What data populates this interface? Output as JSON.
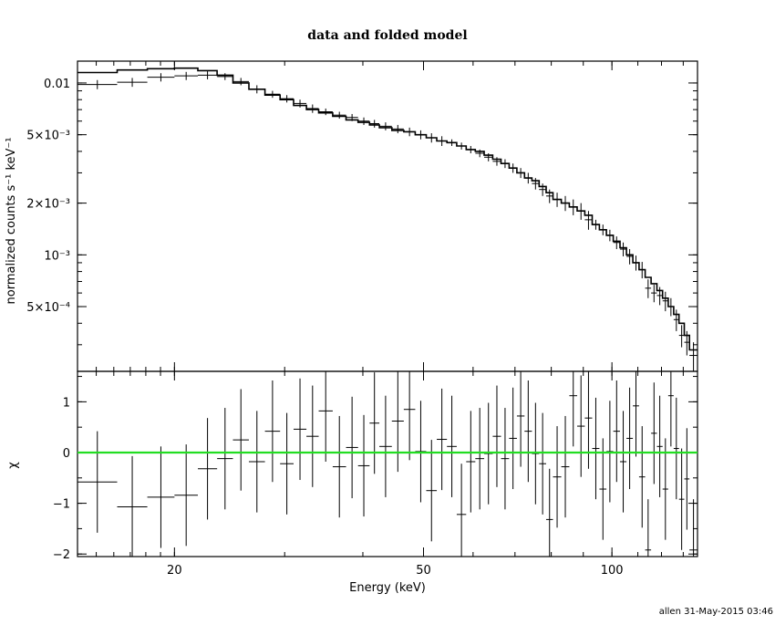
{
  "chart_data": {
    "type": "scatter",
    "title": "data and folded model",
    "xlabel": "Energy (keV)",
    "footer": "allen 31-May-2015 03:46",
    "x_scale": "log",
    "xlim": [
      14.0,
      137.0
    ],
    "x_ticks": [
      {
        "value": 20,
        "label": "20"
      },
      {
        "value": 50,
        "label": "50"
      },
      {
        "value": 100,
        "label": "100"
      }
    ],
    "upper": {
      "ylabel": "normalized counts s⁻¹ keV⁻¹",
      "y_scale": "log",
      "ylim": [
        0.00021,
        0.0134
      ],
      "y_ticks": [
        {
          "value": 0.01,
          "label": "0.01"
        },
        {
          "value": 0.005,
          "label": "5×10⁻³"
        },
        {
          "value": 0.002,
          "label": "2×10⁻³"
        },
        {
          "value": 0.001,
          "label": "10⁻³"
        },
        {
          "value": 0.0005,
          "label": "5×10⁻⁴"
        }
      ]
    },
    "lower": {
      "ylabel": "χ",
      "ylim": [
        -2.05,
        1.6
      ],
      "y_ticks": [
        {
          "value": 1,
          "label": "1"
        },
        {
          "value": 0,
          "label": "0"
        },
        {
          "value": -1,
          "label": "−1"
        },
        {
          "value": -2,
          "label": "−2"
        }
      ],
      "reference_line": 0,
      "reference_color": "#22dd22"
    },
    "bins": [
      {
        "elo": 14.0,
        "ehi": 16.2,
        "data": 0.0098,
        "derr": 0.0006,
        "model": 0.0115,
        "chi": -0.58,
        "chierr": 1.0
      },
      {
        "elo": 16.2,
        "ehi": 18.1,
        "data": 0.0101,
        "derr": 0.0006,
        "model": 0.0119,
        "chi": -1.07,
        "chierr": 1.0
      },
      {
        "elo": 18.1,
        "ehi": 20.0,
        "data": 0.0108,
        "derr": 0.0006,
        "model": 0.0121,
        "chi": -0.88,
        "chierr": 1.0
      },
      {
        "elo": 20.0,
        "ehi": 21.8,
        "data": 0.011,
        "derr": 0.0006,
        "model": 0.0122,
        "chi": -0.84,
        "chierr": 1.0
      },
      {
        "elo": 21.8,
        "ehi": 23.4,
        "data": 0.0111,
        "derr": 0.0006,
        "model": 0.0118,
        "chi": -0.32,
        "chierr": 1.0
      },
      {
        "elo": 23.4,
        "ehi": 24.8,
        "data": 0.0109,
        "derr": 0.0005,
        "model": 0.0111,
        "chi": -0.12,
        "chierr": 1.0
      },
      {
        "elo": 24.8,
        "ehi": 26.3,
        "data": 0.0102,
        "derr": 0.0005,
        "model": 0.01,
        "chi": 0.25,
        "chierr": 1.0
      },
      {
        "elo": 26.3,
        "ehi": 27.9,
        "data": 0.0092,
        "derr": 0.0005,
        "model": 0.0092,
        "chi": -0.18,
        "chierr": 1.0
      },
      {
        "elo": 27.9,
        "ehi": 29.5,
        "data": 0.0086,
        "derr": 0.0004,
        "model": 0.0085,
        "chi": 0.42,
        "chierr": 1.0
      },
      {
        "elo": 29.5,
        "ehi": 31.0,
        "data": 0.0081,
        "derr": 0.0004,
        "model": 0.008,
        "chi": -0.22,
        "chierr": 1.0
      },
      {
        "elo": 31.0,
        "ehi": 32.5,
        "data": 0.0076,
        "derr": 0.0004,
        "model": 0.0074,
        "chi": 0.46,
        "chierr": 1.0
      },
      {
        "elo": 32.5,
        "ehi": 34.0,
        "data": 0.0071,
        "derr": 0.0004,
        "model": 0.007,
        "chi": 0.32,
        "chierr": 1.0
      },
      {
        "elo": 34.0,
        "ehi": 35.8,
        "data": 0.0068,
        "derr": 0.0003,
        "model": 0.0067,
        "chi": 0.82,
        "chierr": 1.0
      },
      {
        "elo": 35.8,
        "ehi": 37.6,
        "data": 0.0065,
        "derr": 0.0003,
        "model": 0.0064,
        "chi": -0.28,
        "chierr": 1.0
      },
      {
        "elo": 37.6,
        "ehi": 39.3,
        "data": 0.0063,
        "derr": 0.0003,
        "model": 0.0061,
        "chi": 0.1,
        "chierr": 1.0
      },
      {
        "elo": 39.3,
        "ehi": 41.0,
        "data": 0.006,
        "derr": 0.0003,
        "model": 0.0059,
        "chi": -0.26,
        "chierr": 1.0
      },
      {
        "elo": 41.0,
        "ehi": 42.5,
        "data": 0.0058,
        "derr": 0.0003,
        "model": 0.0057,
        "chi": 0.58,
        "chierr": 1.0
      },
      {
        "elo": 42.5,
        "ehi": 44.5,
        "data": 0.0056,
        "derr": 0.0003,
        "model": 0.0055,
        "chi": 0.12,
        "chierr": 1.0
      },
      {
        "elo": 44.5,
        "ehi": 46.5,
        "data": 0.0054,
        "derr": 0.0003,
        "model": 0.0053,
        "chi": 0.62,
        "chierr": 1.0
      },
      {
        "elo": 46.5,
        "ehi": 48.5,
        "data": 0.0052,
        "derr": 0.0003,
        "model": 0.0052,
        "chi": 0.85,
        "chierr": 1.0
      },
      {
        "elo": 48.5,
        "ehi": 50.5,
        "data": 0.005,
        "derr": 0.0003,
        "model": 0.005,
        "chi": 0.02,
        "chierr": 1.0
      },
      {
        "elo": 50.5,
        "ehi": 52.5,
        "data": 0.0048,
        "derr": 0.0003,
        "model": 0.0048,
        "chi": -0.75,
        "chierr": 1.0
      },
      {
        "elo": 52.5,
        "ehi": 54.5,
        "data": 0.0046,
        "derr": 0.0003,
        "model": 0.0046,
        "chi": 0.26,
        "chierr": 1.0
      },
      {
        "elo": 54.5,
        "ehi": 56.5,
        "data": 0.0045,
        "derr": 0.0002,
        "model": 0.0045,
        "chi": 0.12,
        "chierr": 1.0
      },
      {
        "elo": 56.5,
        "ehi": 58.5,
        "data": 0.0043,
        "derr": 0.0002,
        "model": 0.0043,
        "chi": -1.22,
        "chierr": 1.0
      },
      {
        "elo": 58.5,
        "ehi": 60.5,
        "data": 0.0041,
        "derr": 0.0002,
        "model": 0.0041,
        "chi": -0.18,
        "chierr": 1.0
      },
      {
        "elo": 60.5,
        "ehi": 62.5,
        "data": 0.0039,
        "derr": 0.0002,
        "model": 0.004,
        "chi": -0.12,
        "chierr": 1.0
      },
      {
        "elo": 62.5,
        "ehi": 64.5,
        "data": 0.0037,
        "derr": 0.0002,
        "model": 0.0038,
        "chi": -0.02,
        "chierr": 1.0
      },
      {
        "elo": 64.5,
        "ehi": 66.5,
        "data": 0.0035,
        "derr": 0.0002,
        "model": 0.0036,
        "chi": 0.32,
        "chierr": 1.0
      },
      {
        "elo": 66.5,
        "ehi": 68.5,
        "data": 0.0034,
        "derr": 0.0002,
        "model": 0.0034,
        "chi": -0.12,
        "chierr": 1.0
      },
      {
        "elo": 68.5,
        "ehi": 70.5,
        "data": 0.0032,
        "derr": 0.0002,
        "model": 0.0032,
        "chi": 0.28,
        "chierr": 1.0
      },
      {
        "elo": 70.5,
        "ehi": 72.5,
        "data": 0.003,
        "derr": 0.0002,
        "model": 0.003,
        "chi": 0.72,
        "chierr": 1.0
      },
      {
        "elo": 72.5,
        "ehi": 74.5,
        "data": 0.0028,
        "derr": 0.0002,
        "model": 0.0028,
        "chi": 0.42,
        "chierr": 1.0
      },
      {
        "elo": 74.5,
        "ehi": 76.5,
        "data": 0.0026,
        "derr": 0.0002,
        "model": 0.0027,
        "chi": -0.02,
        "chierr": 1.0
      },
      {
        "elo": 76.5,
        "ehi": 78.5,
        "data": 0.0024,
        "derr": 0.0002,
        "model": 0.0025,
        "chi": -0.22,
        "chierr": 1.0
      },
      {
        "elo": 78.5,
        "ehi": 80.5,
        "data": 0.0022,
        "derr": 0.0002,
        "model": 0.0023,
        "chi": -1.32,
        "chierr": 1.0
      },
      {
        "elo": 80.5,
        "ehi": 83.0,
        "data": 0.0021,
        "derr": 0.0002,
        "model": 0.0021,
        "chi": -0.48,
        "chierr": 1.0
      },
      {
        "elo": 83.0,
        "ehi": 85.5,
        "data": 0.002,
        "derr": 0.0002,
        "model": 0.002,
        "chi": -0.28,
        "chierr": 1.0
      },
      {
        "elo": 85.5,
        "ehi": 88.0,
        "data": 0.0019,
        "derr": 0.0002,
        "model": 0.0019,
        "chi": 1.12,
        "chierr": 1.0
      },
      {
        "elo": 88.0,
        "ehi": 90.5,
        "data": 0.0018,
        "derr": 0.0002,
        "model": 0.0018,
        "chi": 0.52,
        "chierr": 1.0
      },
      {
        "elo": 90.5,
        "ehi": 93.0,
        "data": 0.0016,
        "derr": 0.0002,
        "model": 0.0017,
        "chi": 0.68,
        "chierr": 1.0
      },
      {
        "elo": 93.0,
        "ehi": 95.5,
        "data": 0.0015,
        "derr": 0.0001,
        "model": 0.0015,
        "chi": 0.08,
        "chierr": 1.0
      },
      {
        "elo": 95.5,
        "ehi": 98.0,
        "data": 0.0014,
        "derr": 0.0001,
        "model": 0.0014,
        "chi": -0.72,
        "chierr": 1.0
      },
      {
        "elo": 98.0,
        "ehi": 100.5,
        "data": 0.0013,
        "derr": 0.0001,
        "model": 0.0013,
        "chi": 0.02,
        "chierr": 1.0
      },
      {
        "elo": 100.5,
        "ehi": 103.0,
        "data": 0.00118,
        "derr": 0.0001,
        "model": 0.0012,
        "chi": 0.42,
        "chierr": 1.0
      },
      {
        "elo": 103.0,
        "ehi": 105.5,
        "data": 0.00108,
        "derr": 0.0001,
        "model": 0.0011,
        "chi": -0.18,
        "chierr": 1.0
      },
      {
        "elo": 105.5,
        "ehi": 108.0,
        "data": 0.00098,
        "derr": 0.0001,
        "model": 0.001,
        "chi": 0.28,
        "chierr": 1.0
      },
      {
        "elo": 108.0,
        "ehi": 110.5,
        "data": 0.0009,
        "derr": 9e-05,
        "model": 0.0009,
        "chi": 0.92,
        "chierr": 1.0
      },
      {
        "elo": 110.5,
        "ehi": 113.0,
        "data": 0.00082,
        "derr": 9e-05,
        "model": 0.00082,
        "chi": -0.48,
        "chierr": 1.0
      },
      {
        "elo": 113.0,
        "ehi": 115.5,
        "data": 0.00064,
        "derr": 8e-05,
        "model": 0.00074,
        "chi": -1.92,
        "chierr": 1.0
      },
      {
        "elo": 115.5,
        "ehi": 118.0,
        "data": 0.0006,
        "derr": 7e-05,
        "model": 0.00068,
        "chi": 0.38,
        "chierr": 1.0
      },
      {
        "elo": 118.0,
        "ehi": 120.5,
        "data": 0.00058,
        "derr": 7e-05,
        "model": 0.00062,
        "chi": 0.12,
        "chierr": 1.0
      },
      {
        "elo": 120.5,
        "ehi": 123.0,
        "data": 0.00054,
        "derr": 7e-05,
        "model": 0.00056,
        "chi": -0.72,
        "chierr": 1.0
      },
      {
        "elo": 123.0,
        "ehi": 125.5,
        "data": 0.0005,
        "derr": 6e-05,
        "model": 0.0005,
        "chi": 1.12,
        "chierr": 1.0
      },
      {
        "elo": 125.5,
        "ehi": 128.0,
        "data": 0.00042,
        "derr": 6e-05,
        "model": 0.00045,
        "chi": 0.08,
        "chierr": 1.0
      },
      {
        "elo": 128.0,
        "ehi": 130.5,
        "data": 0.00034,
        "derr": 5e-05,
        "model": 0.0004,
        "chi": -0.92,
        "chierr": 1.0
      },
      {
        "elo": 130.5,
        "ehi": 133.0,
        "data": 0.00031,
        "derr": 5e-05,
        "model": 0.00034,
        "chi": -0.52,
        "chierr": 1.0
      },
      {
        "elo": 133.0,
        "ehi": 137.0,
        "data": 0.00026,
        "derr": 5e-05,
        "model": 0.00028,
        "chi": -1.92,
        "chierr": 1.0
      }
    ]
  }
}
